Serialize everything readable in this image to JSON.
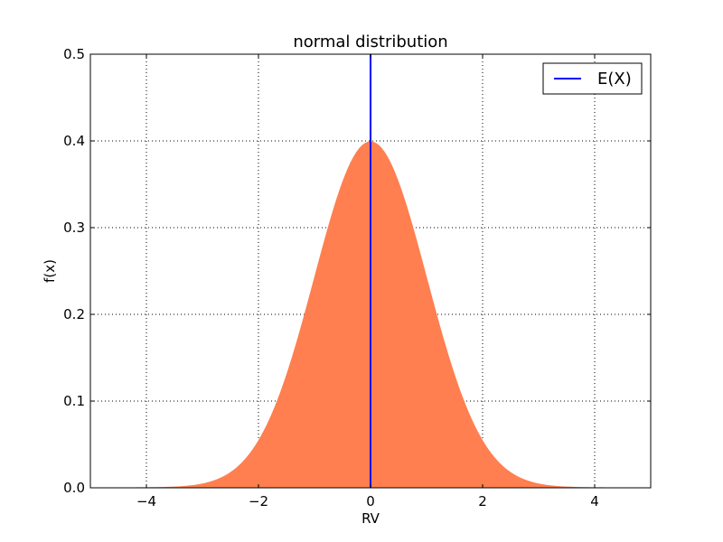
{
  "chart_data": {
    "type": "area",
    "title": "normal distribution",
    "xlabel": "RV",
    "ylabel": "f(x)",
    "xlim": [
      -5,
      5
    ],
    "ylim": [
      0,
      0.5
    ],
    "xticks": [
      -4,
      -2,
      0,
      2,
      4
    ],
    "xtick_labels": [
      "−4",
      "−2",
      "0",
      "2",
      "4"
    ],
    "yticks": [
      0.0,
      0.1,
      0.2,
      0.3,
      0.4,
      0.5
    ],
    "ytick_labels": [
      "0.0",
      "0.1",
      "0.2",
      "0.3",
      "0.4",
      "0.5"
    ],
    "grid": true,
    "legend_position": "top-right",
    "series": [
      {
        "kind": "filled-area",
        "x": [
          -5.0,
          -4.5,
          -4.0,
          -3.5,
          -3.0,
          -2.5,
          -2.0,
          -1.75,
          -1.5,
          -1.25,
          -1.0,
          -0.75,
          -0.5,
          -0.25,
          0.0,
          0.25,
          0.5,
          0.75,
          1.0,
          1.25,
          1.5,
          1.75,
          2.0,
          2.5,
          3.0,
          3.5,
          4.0,
          4.5,
          5.0
        ],
        "y": [
          0.0,
          0.0,
          0.0001,
          0.0009,
          0.0044,
          0.0175,
          0.054,
          0.0863,
          0.1295,
          0.1826,
          0.242,
          0.3011,
          0.3521,
          0.3867,
          0.3989,
          0.3867,
          0.3521,
          0.3011,
          0.242,
          0.1826,
          0.1295,
          0.0863,
          0.054,
          0.0175,
          0.0044,
          0.0009,
          0.0001,
          0.0,
          0.0
        ],
        "color": "#ff7f50"
      },
      {
        "kind": "vertical-line",
        "name": "E(X)",
        "x": 0,
        "color": "#0000ff"
      }
    ]
  }
}
